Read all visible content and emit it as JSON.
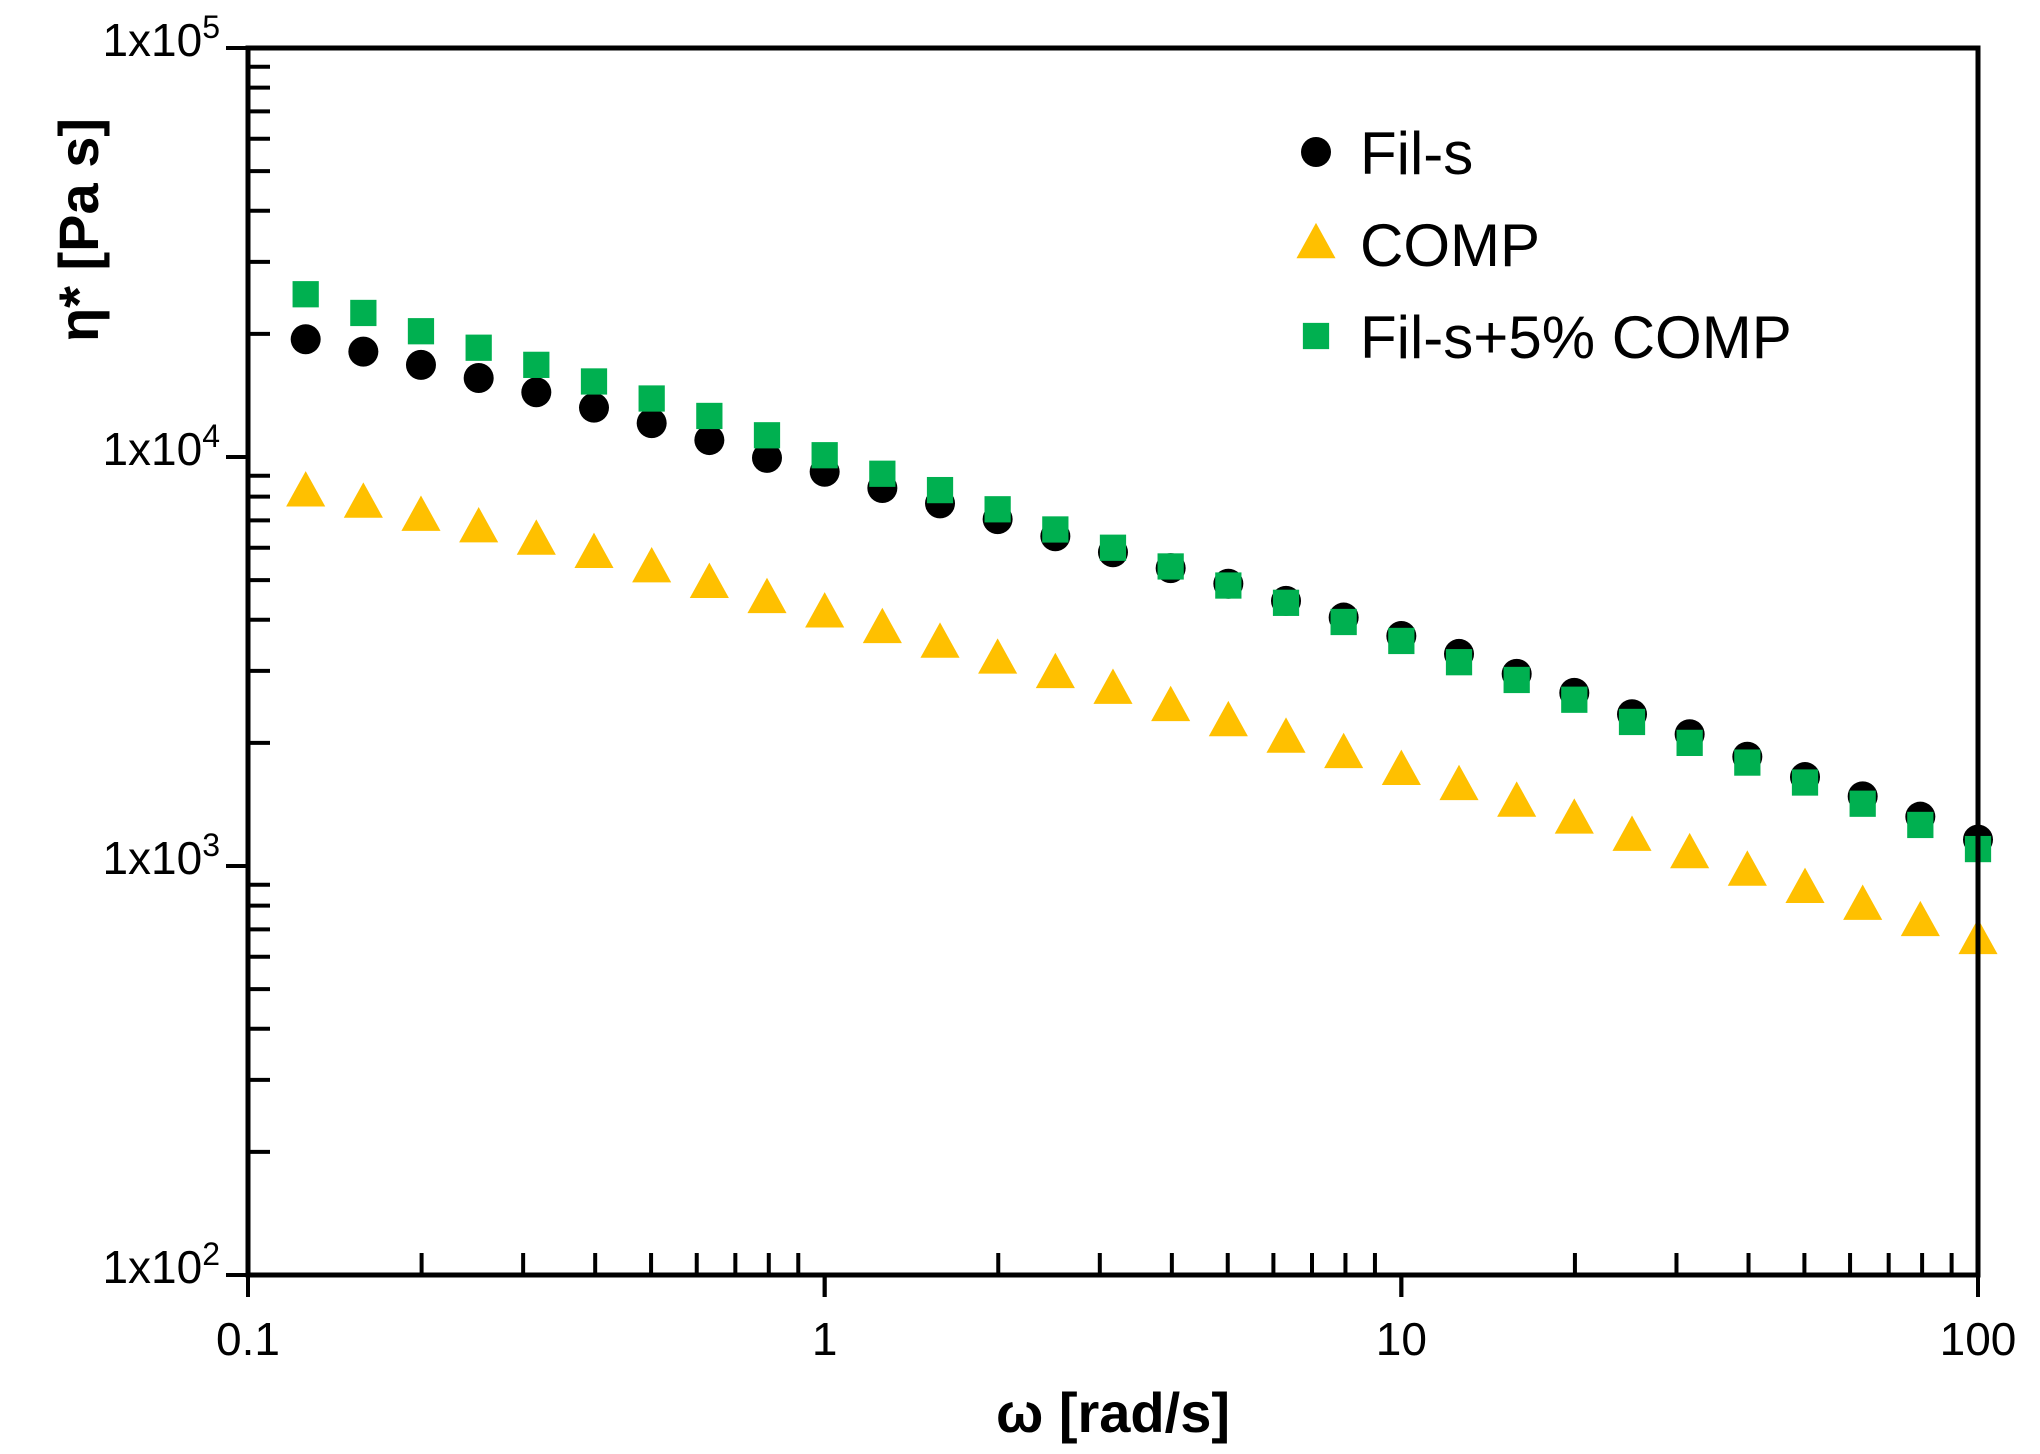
{
  "chart_data": {
    "type": "scatter",
    "title": "",
    "xlabel": "ω [rad/s]",
    "ylabel": "η* [Pa s]",
    "xscale": "log",
    "yscale": "log",
    "xlim": [
      0.1,
      100
    ],
    "ylim": [
      100,
      100000
    ],
    "x_ticks": [
      {
        "value": 0.1,
        "label": "0.1"
      },
      {
        "value": 1,
        "label": "1"
      },
      {
        "value": 10,
        "label": "10"
      },
      {
        "value": 100,
        "label": "100"
      }
    ],
    "y_ticks": [
      {
        "value": 100,
        "base": "1x10",
        "exp": "2"
      },
      {
        "value": 1000,
        "base": "1x10",
        "exp": "3"
      },
      {
        "value": 10000,
        "base": "1x10",
        "exp": "4"
      },
      {
        "value": 100000,
        "base": "1x10",
        "exp": "5"
      }
    ],
    "grid": false,
    "legend_position": "top-right",
    "series": [
      {
        "name": "Fil-s",
        "marker": "circle",
        "color": "#000000",
        "x": [
          0.1259,
          0.1585,
          0.1995,
          0.2512,
          0.3162,
          0.3981,
          0.5012,
          0.631,
          0.7943,
          1.0,
          1.259,
          1.585,
          1.995,
          2.512,
          3.162,
          3.981,
          5.012,
          6.31,
          7.943,
          10.0,
          12.59,
          15.85,
          19.95,
          25.12,
          31.62,
          39.81,
          50.12,
          63.1,
          79.43,
          100.0
        ],
        "y": [
          19400,
          18100,
          16800,
          15600,
          14400,
          13200,
          12100,
          11000,
          9950,
          9200,
          8400,
          7700,
          7050,
          6400,
          5850,
          5350,
          4900,
          4450,
          4050,
          3650,
          3300,
          2950,
          2650,
          2350,
          2100,
          1850,
          1650,
          1480,
          1320,
          1160
        ]
      },
      {
        "name": "COMP",
        "marker": "triangle",
        "color": "#FFC000",
        "x": [
          0.1259,
          0.1585,
          0.1995,
          0.2512,
          0.3162,
          0.3981,
          0.5012,
          0.631,
          0.7943,
          1.0,
          1.259,
          1.585,
          1.995,
          2.512,
          3.162,
          3.981,
          5.012,
          6.31,
          7.943,
          10.0,
          12.59,
          15.85,
          19.95,
          25.12,
          31.62,
          39.81,
          50.12,
          63.1,
          79.43,
          100.0
        ],
        "y": [
          8200,
          7700,
          7150,
          6700,
          6250,
          5800,
          5350,
          4900,
          4500,
          4150,
          3800,
          3500,
          3200,
          2950,
          2700,
          2450,
          2250,
          2050,
          1880,
          1710,
          1570,
          1430,
          1300,
          1180,
          1070,
          970,
          880,
          800,
          730,
          660
        ]
      },
      {
        "name": "Fil-s+5% COMP",
        "marker": "square",
        "color": "#00B050",
        "x": [
          0.1259,
          0.1585,
          0.1995,
          0.2512,
          0.3162,
          0.3981,
          0.5012,
          0.631,
          0.7943,
          1.0,
          1.259,
          1.585,
          1.995,
          2.512,
          3.162,
          3.981,
          5.012,
          6.31,
          7.943,
          10.0,
          12.59,
          15.85,
          19.95,
          25.12,
          31.62,
          39.81,
          50.12,
          63.1,
          79.43,
          100.0
        ],
        "y": [
          25000,
          22500,
          20300,
          18500,
          16800,
          15300,
          13900,
          12600,
          11300,
          10100,
          9100,
          8300,
          7450,
          6650,
          6000,
          5400,
          4850,
          4400,
          3950,
          3550,
          3150,
          2850,
          2550,
          2250,
          2000,
          1790,
          1600,
          1420,
          1260,
          1100
        ]
      }
    ]
  }
}
